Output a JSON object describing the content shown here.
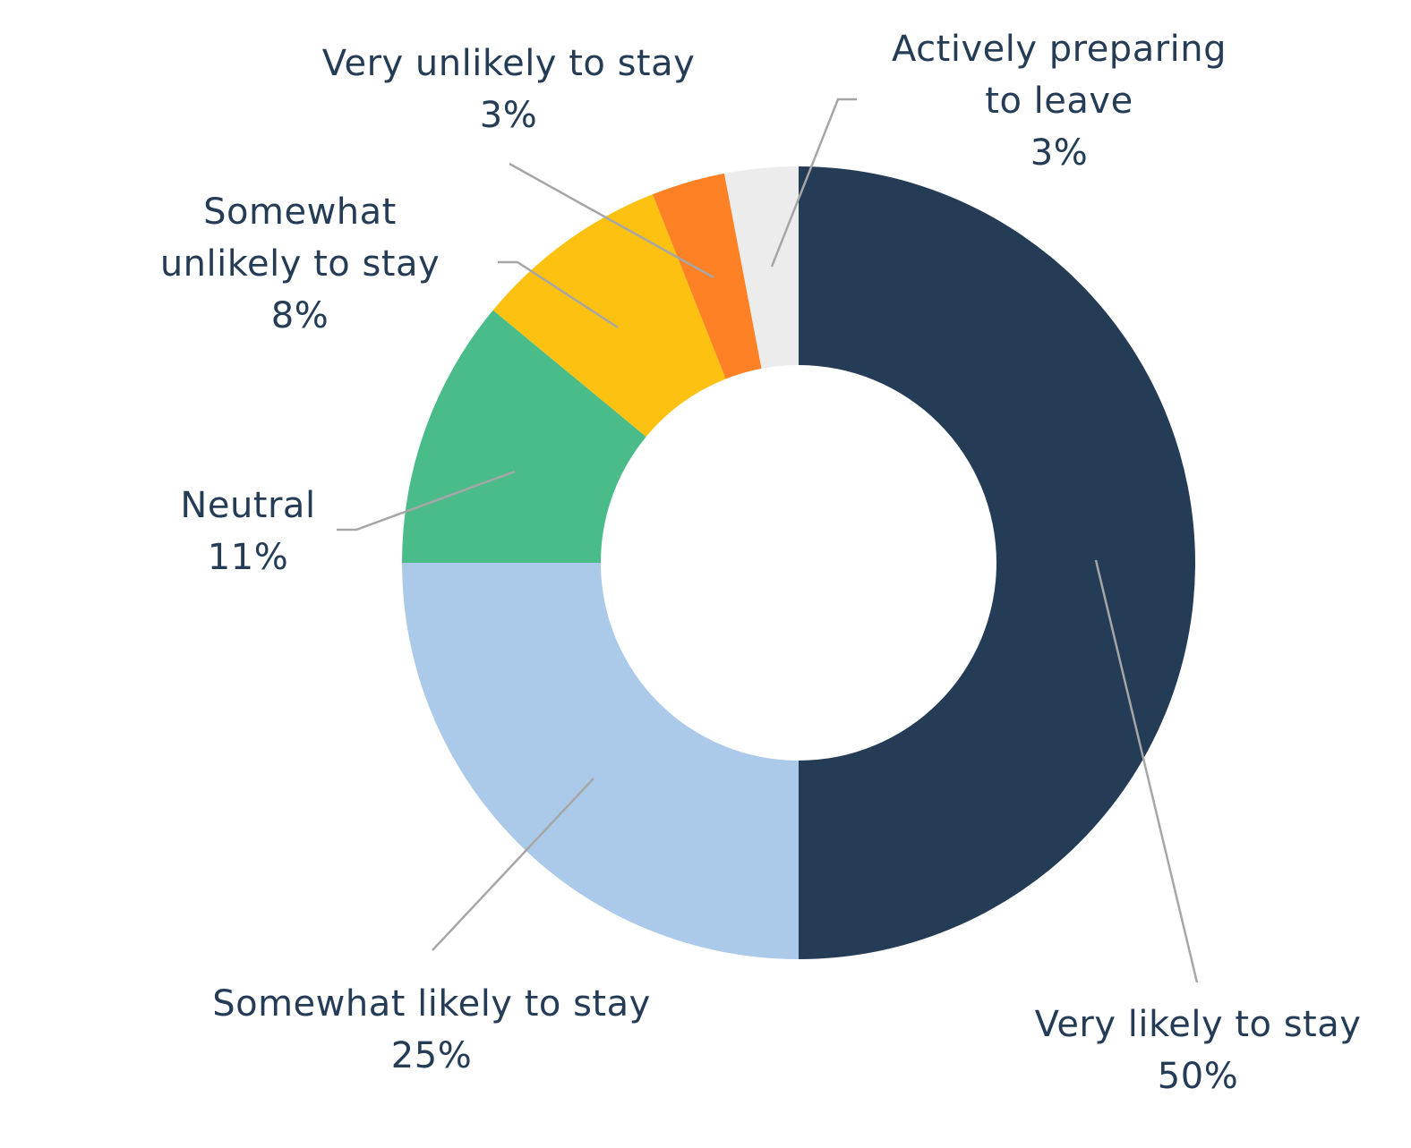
{
  "chart_data": {
    "type": "pie",
    "style": "donut",
    "title": "",
    "legend": "none",
    "labels_position": "outside-with-leader-lines",
    "slices": [
      {
        "label_lines": [
          "Very likely to stay"
        ],
        "value": 50,
        "value_label": "50%",
        "color": "#253c57"
      },
      {
        "label_lines": [
          "Somewhat likely to stay"
        ],
        "value": 25,
        "value_label": "25%",
        "color": "#abcae9"
      },
      {
        "label_lines": [
          "Neutral"
        ],
        "value": 11,
        "value_label": "11%",
        "color": "#49bc8a"
      },
      {
        "label_lines": [
          "Somewhat",
          "unlikely to stay"
        ],
        "value": 8,
        "value_label": "8%",
        "color": "#fdc112"
      },
      {
        "label_lines": [
          "Very unlikely to stay"
        ],
        "value": 3,
        "value_label": "3%",
        "color": "#fe8125"
      },
      {
        "label_lines": [
          "Actively preparing",
          "to leave"
        ],
        "value": 3,
        "value_label": "3%",
        "color": "#ececec"
      }
    ]
  }
}
